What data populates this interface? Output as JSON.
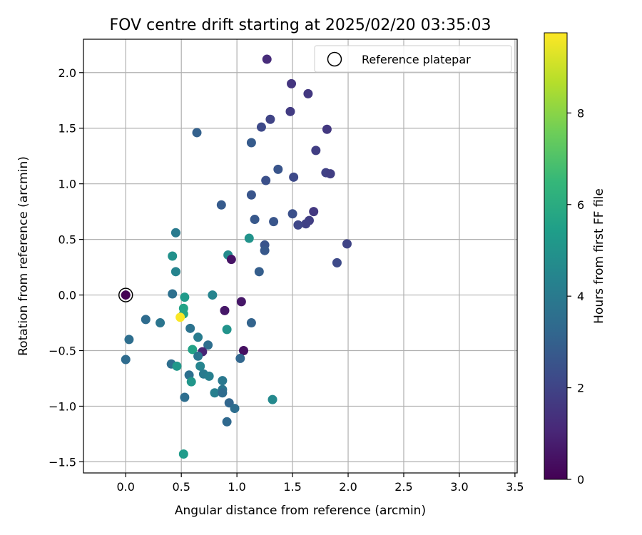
{
  "chart_data": {
    "type": "scatter",
    "title": "FOV centre drift starting at 2025/02/20 03:35:03",
    "xlabel": "Angular distance from reference (arcmin)",
    "ylabel": "Rotation from reference (arcmin)",
    "xlim": [
      -0.38,
      3.52
    ],
    "ylim": [
      -1.6,
      2.3
    ],
    "xticks": [
      0.0,
      0.5,
      1.0,
      1.5,
      2.0,
      2.5,
      3.0,
      3.5
    ],
    "xtick_labels": [
      "0.0",
      "0.5",
      "1.0",
      "1.5",
      "2.0",
      "2.5",
      "3.0",
      "3.5"
    ],
    "yticks": [
      -1.5,
      -1.0,
      -0.5,
      0.0,
      0.5,
      1.0,
      1.5,
      2.0
    ],
    "ytick_labels": [
      "−1.5",
      "−1.0",
      "−0.5",
      "0.0",
      "0.5",
      "1.0",
      "1.5",
      "2.0"
    ],
    "grid": true,
    "legend": {
      "position": "top-right",
      "entries": [
        "Reference platepar"
      ]
    },
    "reference_point": {
      "x": 0.0,
      "y": 0.0,
      "marker": "hollow-circle"
    },
    "colorbar": {
      "label": "Hours from first FF file",
      "colormap": "viridis",
      "min": 0,
      "max": 9.75,
      "ticks": [
        0,
        2,
        4,
        6,
        8
      ],
      "tick_labels": [
        "0",
        "2",
        "4",
        "6",
        "8"
      ]
    },
    "points": [
      {
        "x": 0.0,
        "y": 0.0,
        "c": 0.0
      },
      {
        "x": 1.27,
        "y": 2.12,
        "c": 1.2
      },
      {
        "x": 1.49,
        "y": 1.9,
        "c": 1.5
      },
      {
        "x": 1.64,
        "y": 1.81,
        "c": 1.6
      },
      {
        "x": 1.48,
        "y": 1.65,
        "c": 1.7
      },
      {
        "x": 1.81,
        "y": 1.49,
        "c": 1.6
      },
      {
        "x": 1.3,
        "y": 1.58,
        "c": 2.0
      },
      {
        "x": 1.22,
        "y": 1.51,
        "c": 2.2
      },
      {
        "x": 0.64,
        "y": 1.46,
        "c": 3.0
      },
      {
        "x": 1.13,
        "y": 1.37,
        "c": 2.8
      },
      {
        "x": 1.71,
        "y": 1.3,
        "c": 1.8
      },
      {
        "x": 1.37,
        "y": 1.13,
        "c": 2.6
      },
      {
        "x": 1.8,
        "y": 1.1,
        "c": 1.9
      },
      {
        "x": 1.84,
        "y": 1.09,
        "c": 1.8
      },
      {
        "x": 1.51,
        "y": 1.06,
        "c": 2.2
      },
      {
        "x": 1.26,
        "y": 1.03,
        "c": 2.4
      },
      {
        "x": 1.13,
        "y": 0.9,
        "c": 2.6
      },
      {
        "x": 0.86,
        "y": 0.81,
        "c": 2.8
      },
      {
        "x": 1.69,
        "y": 0.75,
        "c": 1.6
      },
      {
        "x": 1.5,
        "y": 0.73,
        "c": 2.4
      },
      {
        "x": 1.16,
        "y": 0.68,
        "c": 2.7
      },
      {
        "x": 1.65,
        "y": 0.67,
        "c": 1.8
      },
      {
        "x": 1.33,
        "y": 0.66,
        "c": 2.6
      },
      {
        "x": 1.62,
        "y": 0.64,
        "c": 1.9
      },
      {
        "x": 1.55,
        "y": 0.63,
        "c": 2.1
      },
      {
        "x": 0.45,
        "y": 0.56,
        "c": 4.0
      },
      {
        "x": 1.11,
        "y": 0.51,
        "c": 5.0
      },
      {
        "x": 1.99,
        "y": 0.46,
        "c": 2.0
      },
      {
        "x": 1.25,
        "y": 0.45,
        "c": 2.5
      },
      {
        "x": 1.25,
        "y": 0.4,
        "c": 2.7
      },
      {
        "x": 0.92,
        "y": 0.36,
        "c": 4.7
      },
      {
        "x": 0.42,
        "y": 0.35,
        "c": 4.9
      },
      {
        "x": 0.95,
        "y": 0.32,
        "c": 0.5
      },
      {
        "x": 1.9,
        "y": 0.29,
        "c": 2.2
      },
      {
        "x": 0.45,
        "y": 0.21,
        "c": 4.4
      },
      {
        "x": 1.2,
        "y": 0.21,
        "c": 2.9
      },
      {
        "x": 0.42,
        "y": 0.01,
        "c": 3.6
      },
      {
        "x": 0.78,
        "y": 0.0,
        "c": 4.4
      },
      {
        "x": 0.53,
        "y": -0.02,
        "c": 5.3
      },
      {
        "x": 1.04,
        "y": -0.06,
        "c": 0.6
      },
      {
        "x": 0.52,
        "y": -0.12,
        "c": 5.6
      },
      {
        "x": 0.89,
        "y": -0.14,
        "c": 0.6
      },
      {
        "x": 0.52,
        "y": -0.17,
        "c": 5.7
      },
      {
        "x": 0.18,
        "y": -0.22,
        "c": 3.4
      },
      {
        "x": 0.49,
        "y": -0.2,
        "c": 9.7
      },
      {
        "x": 0.31,
        "y": -0.25,
        "c": 3.8
      },
      {
        "x": 1.13,
        "y": -0.25,
        "c": 3.1
      },
      {
        "x": 0.58,
        "y": -0.3,
        "c": 3.7
      },
      {
        "x": 0.91,
        "y": -0.31,
        "c": 5.0
      },
      {
        "x": 0.65,
        "y": -0.38,
        "c": 4.1
      },
      {
        "x": 0.03,
        "y": -0.4,
        "c": 3.5
      },
      {
        "x": 0.74,
        "y": -0.45,
        "c": 3.5
      },
      {
        "x": 0.6,
        "y": -0.49,
        "c": 5.6
      },
      {
        "x": 1.06,
        "y": -0.5,
        "c": 0.4
      },
      {
        "x": 0.69,
        "y": -0.51,
        "c": 1.0
      },
      {
        "x": 0.65,
        "y": -0.55,
        "c": 3.8
      },
      {
        "x": 1.03,
        "y": -0.57,
        "c": 3.2
      },
      {
        "x": 0.0,
        "y": -0.58,
        "c": 3.4
      },
      {
        "x": 0.41,
        "y": -0.62,
        "c": 3.5
      },
      {
        "x": 0.46,
        "y": -0.64,
        "c": 5.2
      },
      {
        "x": 0.67,
        "y": -0.64,
        "c": 4.4
      },
      {
        "x": 0.7,
        "y": -0.71,
        "c": 4.0
      },
      {
        "x": 0.57,
        "y": -0.72,
        "c": 3.6
      },
      {
        "x": 0.75,
        "y": -0.73,
        "c": 4.2
      },
      {
        "x": 0.87,
        "y": -0.77,
        "c": 3.9
      },
      {
        "x": 0.59,
        "y": -0.78,
        "c": 5.1
      },
      {
        "x": 0.87,
        "y": -0.85,
        "c": 3.8
      },
      {
        "x": 0.8,
        "y": -0.88,
        "c": 4.2
      },
      {
        "x": 0.87,
        "y": -0.88,
        "c": 3.4
      },
      {
        "x": 0.53,
        "y": -0.92,
        "c": 3.5
      },
      {
        "x": 1.32,
        "y": -0.94,
        "c": 4.6
      },
      {
        "x": 0.93,
        "y": -0.97,
        "c": 3.2
      },
      {
        "x": 0.98,
        "y": -1.02,
        "c": 3.5
      },
      {
        "x": 0.91,
        "y": -1.14,
        "c": 3.3
      },
      {
        "x": 0.52,
        "y": -1.43,
        "c": 5.3
      }
    ]
  }
}
